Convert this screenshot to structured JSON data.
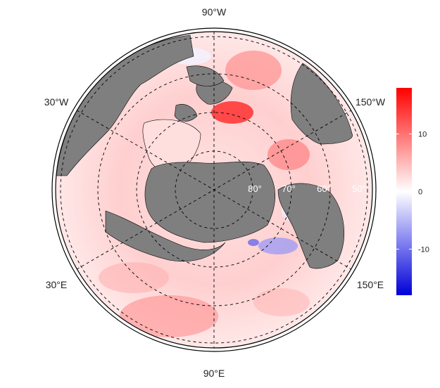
{
  "map": {
    "projection": "north-polar-stereographic",
    "land_color": "#7f7f7f",
    "ocean_anomaly_colormap": [
      "#0000ff",
      "#ffffff",
      "#ff0000"
    ],
    "graticule_style": "dashed",
    "longitude_labels": {
      "top": "90°W",
      "upper_left": "30°W",
      "upper_right": "150°W",
      "lower_left": "30°E",
      "lower_right": "150°E",
      "bottom": "90°E"
    },
    "latitude_labels": [
      "80°",
      "70°",
      "60°",
      "50°"
    ]
  },
  "colorbar": {
    "min": -18,
    "max": 18,
    "ticks": [
      {
        "value": 10,
        "label": "10"
      },
      {
        "value": 0,
        "label": "0"
      },
      {
        "value": -10,
        "label": "-10"
      }
    ],
    "colors": {
      "high": "#ff0000",
      "mid": "#ffffff",
      "low": "#0000ff"
    }
  }
}
